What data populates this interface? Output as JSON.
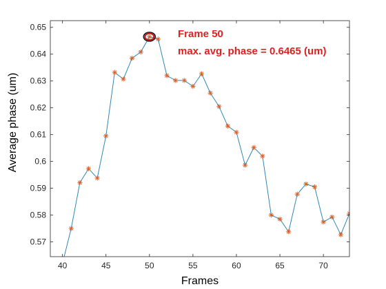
{
  "chart_data": {
    "type": "line",
    "title": "",
    "xlabel": "Frames",
    "ylabel": "Average phase (um)",
    "xlim": [
      38.6,
      73
    ],
    "ylim": [
      0.5645,
      0.6525
    ],
    "xticks": [
      40,
      45,
      50,
      55,
      60,
      65,
      70
    ],
    "xtick_labels": [
      "40",
      "45",
      "50",
      "55",
      "60",
      "65",
      "70"
    ],
    "yticks": [
      0.57,
      0.58,
      0.59,
      0.6,
      0.61,
      0.62,
      0.63,
      0.64,
      0.65
    ],
    "ytick_labels": [
      "0.57",
      "0.58",
      "0.59",
      "0.6",
      "0.61",
      "0.62",
      "0.63",
      "0.64",
      "0.65"
    ],
    "grid": false,
    "series": [
      {
        "line_color": "#2e86b5",
        "marker": "asterisk",
        "marker_color": "#d9622b",
        "x": [
          39,
          40,
          41,
          42,
          43,
          44,
          45,
          46,
          47,
          48,
          49,
          50,
          51,
          52,
          53,
          54,
          55,
          56,
          57,
          58,
          59,
          60,
          61,
          62,
          63,
          64,
          65,
          66,
          67,
          68,
          69,
          70,
          71,
          72,
          73,
          74
        ],
        "y": [
          0.555,
          0.562,
          0.575,
          0.5921,
          0.5973,
          0.5938,
          0.6095,
          0.6332,
          0.6307,
          0.6385,
          0.6408,
          0.6465,
          0.6456,
          0.632,
          0.6302,
          0.6302,
          0.628,
          0.6327,
          0.6255,
          0.6205,
          0.6132,
          0.6109,
          0.5986,
          0.6052,
          0.602,
          0.58,
          0.5785,
          0.5738,
          0.5878,
          0.5916,
          0.5905,
          0.5774,
          0.5793,
          0.5727,
          0.5806,
          0.565
        ]
      }
    ],
    "highlight": {
      "x": 50,
      "y": 0.6465,
      "marker": "circle",
      "color": "#cc1111"
    },
    "annotations": [
      "Frame 50",
      "max. avg. phase = 0.6465 (um)"
    ],
    "annotation_color": "#e02020"
  }
}
